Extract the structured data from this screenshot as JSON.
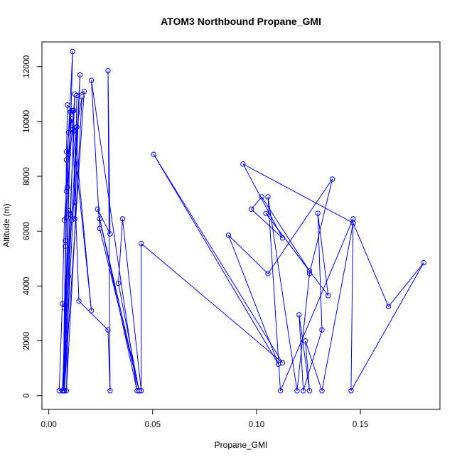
{
  "chart_data": {
    "type": "scatter",
    "title": "ATOM3 Northbound Propane_GMI",
    "xlabel": "Propane_GMI",
    "ylabel": "Altitude (m)",
    "xlim": [
      -0.0033,
      0.1883
    ],
    "ylim": [
      -500,
      12900
    ],
    "x_ticks": [
      {
        "value": 0.0,
        "label": "0.00"
      },
      {
        "value": 0.05,
        "label": "0.05"
      },
      {
        "value": 0.1,
        "label": "0.10"
      },
      {
        "value": 0.15,
        "label": "0.15"
      }
    ],
    "y_ticks": [
      {
        "value": 0,
        "label": "0"
      },
      {
        "value": 2000,
        "label": "2000"
      },
      {
        "value": 4000,
        "label": "4000"
      },
      {
        "value": 6000,
        "label": "6000"
      },
      {
        "value": 8000,
        "label": "8000"
      },
      {
        "value": 10000,
        "label": "10000"
      },
      {
        "value": 12000,
        "label": "12000"
      }
    ],
    "grid": false,
    "legend": "none",
    "marker": "open circle",
    "color": "#0000ff",
    "series": [
      {
        "points": [
          [
            0.005,
            180
          ],
          [
            0.0065,
            3350
          ],
          [
            0.0075,
            6400
          ],
          [
            0.0085,
            7450
          ],
          [
            0.0095,
            9600
          ],
          [
            0.0115,
            12550
          ],
          [
            0.007,
            180
          ],
          [
            0.008,
            5450
          ],
          [
            0.0085,
            8600
          ],
          [
            0.0105,
            10350
          ],
          [
            0.007,
            180
          ],
          [
            0.0075,
            3200
          ],
          [
            0.0085,
            6500
          ],
          [
            0.009,
            7600
          ],
          [
            0.012,
            10400
          ],
          [
            0.0125,
            11000
          ],
          [
            0.0075,
            180
          ],
          [
            0.008,
            3300
          ],
          [
            0.008,
            5650
          ],
          [
            0.0095,
            8800
          ],
          [
            0.011,
            10100
          ],
          [
            0.012,
            9650
          ],
          [
            0.0065,
            180
          ],
          [
            0.0095,
            4350
          ],
          [
            0.011,
            6400
          ],
          [
            0.0135,
            9800
          ],
          [
            0.016,
            10900
          ],
          [
            0.0085,
            180
          ],
          [
            0.0105,
            6600
          ],
          [
            0.0125,
            7050
          ],
          [
            0.0135,
            10950
          ],
          [
            0.017,
            11100
          ],
          [
            0.0075,
            180
          ],
          [
            0.0095,
            6750
          ],
          [
            0.0125,
            6450
          ],
          [
            0.015,
            11700
          ],
          [
            0.0075,
            180
          ],
          [
            0.0085,
            8900
          ],
          [
            0.009,
            10600
          ],
          [
            0.0115,
            10400
          ],
          [
            0.0205,
            3100
          ],
          [
            0.0115,
            9700
          ],
          [
            0.0145,
            3450
          ],
          [
            0.0285,
            2400
          ],
          [
            0.0295,
            180
          ],
          [
            0.0285,
            11850
          ],
          [
            0.0295,
            5900
          ],
          [
            0.0235,
            6800
          ],
          [
            0.0425,
            180
          ],
          [
            0.0205,
            11500
          ],
          [
            0.0245,
            6100
          ],
          [
            0.0435,
            180
          ],
          [
            0.0245,
            6450
          ],
          [
            0.0435,
            180
          ],
          [
            0.0335,
            4100
          ],
          [
            0.0355,
            6450
          ],
          [
            0.0445,
            180
          ],
          [
            0.0445,
            5550
          ],
          [
            0.1125,
            1200
          ],
          [
            0.0505,
            8800
          ],
          [
            0.1105,
            1150
          ],
          [
            0.0865,
            5850
          ],
          [
            0.1055,
            4450
          ],
          [
            0.1365,
            7900
          ],
          [
            0.1255,
            4450
          ],
          [
            0.1195,
            180
          ],
          [
            0.1055,
            7250
          ],
          [
            0.1115,
            180
          ],
          [
            0.1465,
            6450
          ],
          [
            0.1455,
            180
          ],
          [
            0.1805,
            4850
          ],
          [
            0.1635,
            3250
          ],
          [
            0.1465,
            6300
          ],
          [
            0.1315,
            180
          ],
          [
            0.1235,
            2000
          ],
          [
            0.1255,
            180
          ],
          [
            0.1205,
            2950
          ],
          [
            0.1225,
            180
          ],
          [
            0.1315,
            2400
          ],
          [
            0.1295,
            6650
          ],
          [
            0.1345,
            3650
          ],
          [
            0.1045,
            6650
          ],
          [
            0.1255,
            4550
          ],
          [
            0.1025,
            7250
          ],
          [
            0.0975,
            6800
          ],
          [
            0.1125,
            5750
          ],
          [
            0.0935,
            8450
          ],
          [
            0.1465,
            6300
          ]
        ]
      }
    ]
  }
}
